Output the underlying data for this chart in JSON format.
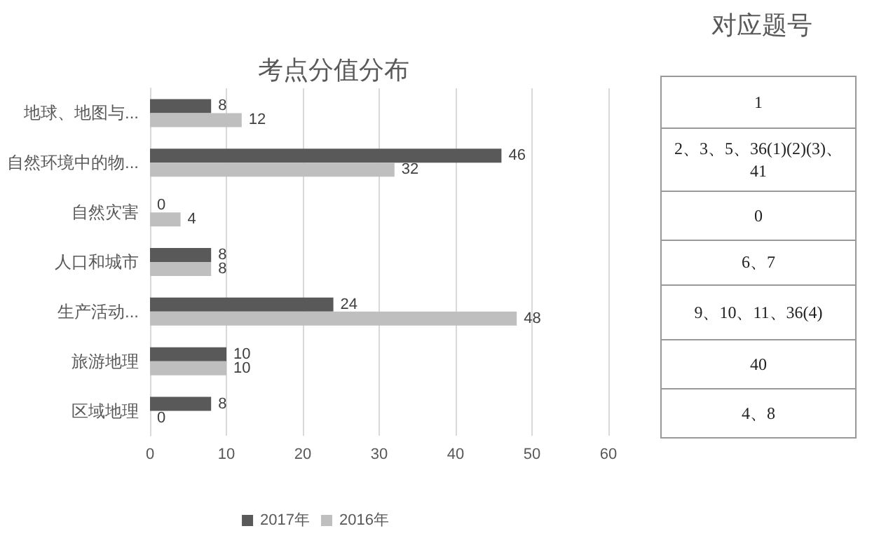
{
  "chart_data": [
    {
      "type": "bar",
      "title": "考点分值分布",
      "orientation": "horizontal",
      "categories": [
        "地球、地图与...",
        "自然环境中的物...",
        "自然灾害",
        "人口和城市",
        "生产活动...",
        "旅游地理",
        "区域地理"
      ],
      "series": [
        {
          "name": "2017年",
          "color": "#595959",
          "values": [
            8,
            46,
            0,
            8,
            24,
            10,
            8
          ]
        },
        {
          "name": "2016年",
          "color": "#bfbfbf",
          "values": [
            12,
            32,
            4,
            8,
            48,
            10,
            0
          ]
        }
      ],
      "xlim": [
        0,
        60
      ],
      "xticks": [
        0,
        10,
        20,
        30,
        40,
        50,
        60
      ],
      "grid": "x",
      "legend": "bottom",
      "data_labels": true
    },
    {
      "type": "other",
      "title": "对应题号",
      "annotations": [
        "1",
        "2、3、5、36(1)(2)(3)、41",
        "0",
        "6、7",
        "9、10、11、36(4)",
        "40",
        "4、8"
      ]
    }
  ]
}
